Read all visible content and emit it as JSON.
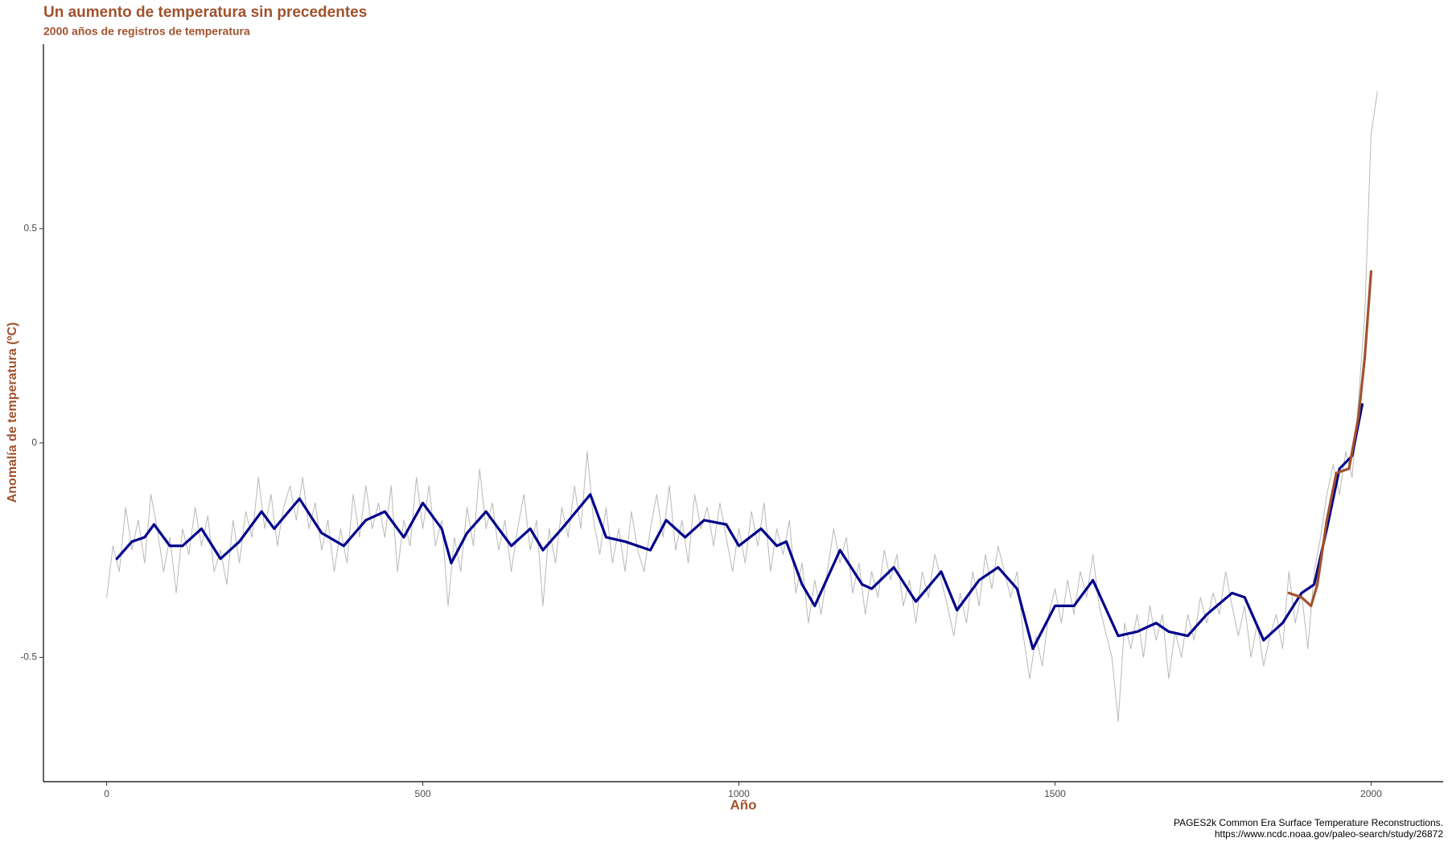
{
  "chart_data": {
    "type": "line",
    "title": "Un aumento de temperatura sin precedentes",
    "subtitle": "2000 años de registros de temperatura",
    "x_label": "Año",
    "y_label": "Anomalía de temperatura (ºC)",
    "caption": [
      "PAGES2k Common Era Surface Temperature Reconstructions.",
      "https://www.ncdc.noaa.gov/paleo-search/study/26872"
    ],
    "xlim": [
      -100,
      2114
    ],
    "ylim": [
      -0.79,
      0.93
    ],
    "xticks": [
      0,
      500,
      1000,
      1500,
      2000
    ],
    "yticks": [
      -0.5,
      0.0,
      0.5
    ],
    "grid": false,
    "series": [
      {
        "color": "#b8b8b8",
        "x": [
          0,
          10,
          20,
          30,
          40,
          50,
          60,
          70,
          80,
          90,
          100,
          110,
          120,
          130,
          140,
          150,
          160,
          170,
          180,
          190,
          200,
          210,
          220,
          230,
          240,
          250,
          260,
          270,
          280,
          290,
          300,
          310,
          320,
          330,
          340,
          350,
          360,
          370,
          380,
          390,
          400,
          410,
          420,
          430,
          440,
          450,
          460,
          470,
          480,
          490,
          500,
          510,
          520,
          530,
          540,
          550,
          560,
          570,
          580,
          590,
          600,
          610,
          620,
          630,
          640,
          650,
          660,
          670,
          680,
          690,
          700,
          710,
          720,
          730,
          740,
          750,
          760,
          770,
          780,
          790,
          800,
          810,
          820,
          830,
          840,
          850,
          860,
          870,
          880,
          890,
          900,
          910,
          920,
          930,
          940,
          950,
          960,
          970,
          980,
          990,
          1000,
          1010,
          1020,
          1030,
          1040,
          1050,
          1060,
          1070,
          1080,
          1090,
          1100,
          1110,
          1120,
          1130,
          1140,
          1150,
          1160,
          1170,
          1180,
          1190,
          1200,
          1210,
          1220,
          1230,
          1240,
          1250,
          1260,
          1270,
          1280,
          1290,
          1300,
          1310,
          1320,
          1330,
          1340,
          1350,
          1360,
          1370,
          1380,
          1390,
          1400,
          1410,
          1420,
          1430,
          1440,
          1450,
          1460,
          1470,
          1480,
          1490,
          1500,
          1510,
          1520,
          1530,
          1540,
          1550,
          1560,
          1570,
          1580,
          1590,
          1600,
          1610,
          1620,
          1630,
          1640,
          1650,
          1660,
          1670,
          1680,
          1690,
          1700,
          1710,
          1720,
          1730,
          1740,
          1750,
          1760,
          1770,
          1780,
          1790,
          1800,
          1810,
          1820,
          1830,
          1840,
          1850,
          1860,
          1870,
          1880,
          1890,
          1900,
          1910,
          1920,
          1930,
          1940,
          1950,
          1960,
          1970,
          1980,
          1990,
          2000,
          2010
        ],
        "values": [
          -0.36,
          -0.24,
          -0.3,
          -0.15,
          -0.25,
          -0.18,
          -0.28,
          -0.12,
          -0.2,
          -0.3,
          -0.22,
          -0.35,
          -0.2,
          -0.26,
          -0.15,
          -0.24,
          -0.17,
          -0.3,
          -0.25,
          -0.33,
          -0.18,
          -0.28,
          -0.16,
          -0.22,
          -0.08,
          -0.2,
          -0.12,
          -0.24,
          -0.15,
          -0.1,
          -0.18,
          -0.08,
          -0.2,
          -0.14,
          -0.25,
          -0.18,
          -0.3,
          -0.2,
          -0.28,
          -0.12,
          -0.22,
          -0.1,
          -0.2,
          -0.14,
          -0.22,
          -0.1,
          -0.3,
          -0.18,
          -0.24,
          -0.08,
          -0.2,
          -0.1,
          -0.24,
          -0.18,
          -0.38,
          -0.22,
          -0.3,
          -0.15,
          -0.24,
          -0.06,
          -0.2,
          -0.14,
          -0.25,
          -0.18,
          -0.3,
          -0.2,
          -0.12,
          -0.25,
          -0.18,
          -0.38,
          -0.2,
          -0.28,
          -0.15,
          -0.22,
          -0.1,
          -0.2,
          -0.02,
          -0.18,
          -0.26,
          -0.15,
          -0.28,
          -0.2,
          -0.3,
          -0.16,
          -0.25,
          -0.3,
          -0.2,
          -0.12,
          -0.22,
          -0.1,
          -0.25,
          -0.18,
          -0.28,
          -0.12,
          -0.2,
          -0.15,
          -0.24,
          -0.14,
          -0.22,
          -0.3,
          -0.2,
          -0.28,
          -0.16,
          -0.24,
          -0.14,
          -0.3,
          -0.2,
          -0.26,
          -0.18,
          -0.35,
          -0.28,
          -0.42,
          -0.32,
          -0.4,
          -0.3,
          -0.2,
          -0.28,
          -0.22,
          -0.35,
          -0.28,
          -0.4,
          -0.3,
          -0.36,
          -0.25,
          -0.32,
          -0.26,
          -0.38,
          -0.32,
          -0.42,
          -0.3,
          -0.36,
          -0.26,
          -0.32,
          -0.38,
          -0.45,
          -0.35,
          -0.42,
          -0.3,
          -0.38,
          -0.26,
          -0.34,
          -0.24,
          -0.3,
          -0.36,
          -0.3,
          -0.45,
          -0.55,
          -0.45,
          -0.52,
          -0.4,
          -0.34,
          -0.42,
          -0.32,
          -0.4,
          -0.3,
          -0.36,
          -0.26,
          -0.38,
          -0.44,
          -0.5,
          -0.65,
          -0.42,
          -0.48,
          -0.4,
          -0.5,
          -0.38,
          -0.46,
          -0.4,
          -0.55,
          -0.44,
          -0.5,
          -0.4,
          -0.46,
          -0.36,
          -0.42,
          -0.35,
          -0.4,
          -0.3,
          -0.38,
          -0.45,
          -0.38,
          -0.5,
          -0.42,
          -0.52,
          -0.45,
          -0.4,
          -0.48,
          -0.3,
          -0.42,
          -0.35,
          -0.48,
          -0.3,
          -0.22,
          -0.12,
          -0.05,
          -0.12,
          -0.02,
          -0.08,
          0.1,
          0.3,
          0.72,
          0.82
        ]
      },
      {
        "color": "#00008b",
        "x": [
          16,
          40,
          60,
          75,
          100,
          120,
          150,
          180,
          210,
          245,
          265,
          305,
          340,
          375,
          410,
          440,
          470,
          500,
          530,
          545,
          570,
          600,
          640,
          670,
          690,
          720,
          765,
          790,
          820,
          860,
          885,
          915,
          945,
          980,
          1000,
          1035,
          1060,
          1075,
          1100,
          1120,
          1160,
          1195,
          1210,
          1245,
          1280,
          1320,
          1345,
          1380,
          1410,
          1440,
          1465,
          1500,
          1530,
          1560,
          1600,
          1630,
          1660,
          1680,
          1710,
          1740,
          1780,
          1800,
          1830,
          1860,
          1890,
          1910,
          1930,
          1950,
          1970,
          1986
        ],
        "values": [
          -0.27,
          -0.23,
          -0.22,
          -0.19,
          -0.24,
          -0.24,
          -0.2,
          -0.27,
          -0.23,
          -0.16,
          -0.2,
          -0.13,
          -0.21,
          -0.24,
          -0.18,
          -0.16,
          -0.22,
          -0.14,
          -0.2,
          -0.28,
          -0.21,
          -0.16,
          -0.24,
          -0.2,
          -0.25,
          -0.2,
          -0.12,
          -0.22,
          -0.23,
          -0.25,
          -0.18,
          -0.22,
          -0.18,
          -0.19,
          -0.24,
          -0.2,
          -0.24,
          -0.23,
          -0.33,
          -0.38,
          -0.25,
          -0.33,
          -0.34,
          -0.29,
          -0.37,
          -0.3,
          -0.39,
          -0.32,
          -0.29,
          -0.34,
          -0.48,
          -0.38,
          -0.38,
          -0.32,
          -0.45,
          -0.44,
          -0.42,
          -0.44,
          -0.45,
          -0.4,
          -0.35,
          -0.36,
          -0.46,
          -0.42,
          -0.35,
          -0.33,
          -0.2,
          -0.06,
          -0.03,
          0.09
        ]
      },
      {
        "color": "#a0522d",
        "x": [
          1870,
          1890,
          1905,
          1915,
          1930,
          1945,
          1965,
          1980,
          1990,
          2000
        ],
        "values": [
          -0.35,
          -0.36,
          -0.38,
          -0.33,
          -0.18,
          -0.07,
          -0.06,
          0.06,
          0.2,
          0.4
        ]
      }
    ]
  }
}
